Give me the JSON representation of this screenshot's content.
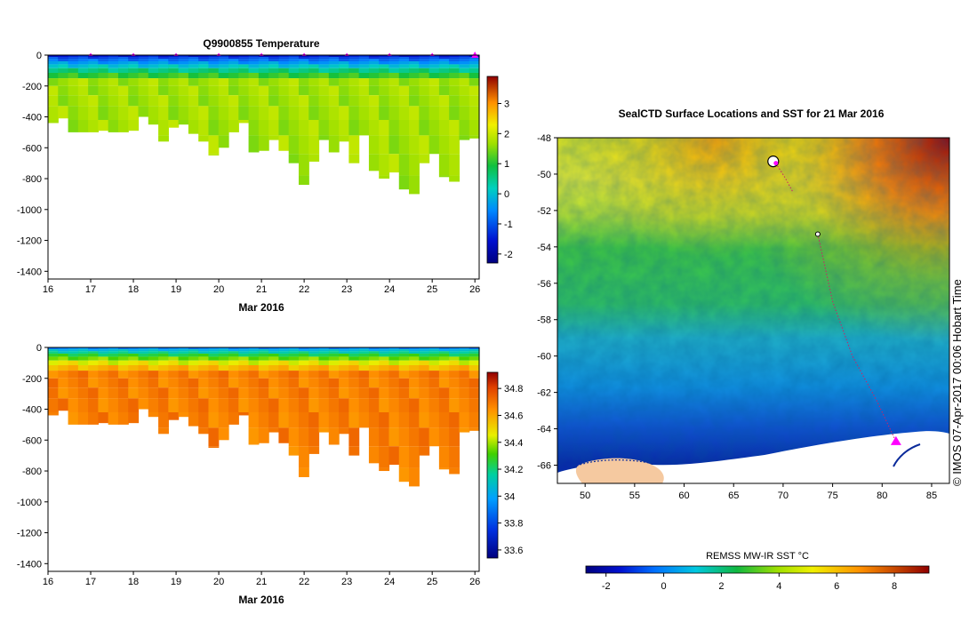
{
  "chart_data": [
    {
      "type": "heatmap",
      "title": "Q9900855  Temperature",
      "xlabel": "Mar 2016",
      "ylabel": "",
      "x_ticks": [
        "16",
        "17",
        "18",
        "19",
        "20",
        "21",
        "22",
        "23",
        "24",
        "25",
        "26"
      ],
      "y_ticks": [
        "0",
        "-200",
        "-400",
        "-600",
        "-800",
        "-1000",
        "-1200",
        "-1400"
      ],
      "xlim": [
        16,
        26.1
      ],
      "ylim": [
        -1450,
        0
      ],
      "colorbar": {
        "ticks": [
          "-2",
          "-1",
          "0",
          "1",
          "2",
          "3"
        ],
        "min": -2.3,
        "max": 3.9
      },
      "profile_markers_day": [
        17,
        18,
        19,
        20,
        21,
        22,
        23,
        24,
        25,
        26
      ],
      "surface_value": -1.8,
      "deep_value": 1.7,
      "profile_depths_m": [
        440,
        410,
        500,
        500,
        500,
        490,
        500,
        500,
        490,
        400,
        450,
        560,
        470,
        450,
        510,
        560,
        650,
        600,
        500,
        440,
        630,
        620,
        550,
        620,
        700,
        840,
        690,
        550,
        630,
        560,
        700,
        520,
        750,
        800,
        760,
        870,
        900,
        700,
        640,
        790,
        820,
        550,
        540
      ]
    },
    {
      "type": "heatmap",
      "title": "",
      "xlabel": "Mar 2016",
      "ylabel": "",
      "x_ticks": [
        "16",
        "17",
        "18",
        "19",
        "20",
        "21",
        "22",
        "23",
        "24",
        "25",
        "26"
      ],
      "y_ticks": [
        "0",
        "-200",
        "-400",
        "-600",
        "-800",
        "-1000",
        "-1200",
        "-1400"
      ],
      "xlim": [
        16,
        26.1
      ],
      "ylim": [
        -1450,
        0
      ],
      "colorbar": {
        "ticks": [
          "33.6",
          "33.8",
          "34",
          "34.2",
          "34.4",
          "34.6",
          "34.8"
        ],
        "min": 33.54,
        "max": 34.92
      },
      "surface_value": 33.8,
      "deep_value": 34.68,
      "profile_depths_m": [
        440,
        410,
        500,
        500,
        500,
        490,
        500,
        500,
        490,
        400,
        450,
        560,
        470,
        450,
        510,
        560,
        650,
        600,
        500,
        440,
        630,
        620,
        550,
        620,
        700,
        840,
        690,
        550,
        630,
        560,
        700,
        520,
        750,
        800,
        760,
        870,
        900,
        700,
        640,
        790,
        820,
        550,
        540
      ]
    },
    {
      "type": "heatmap",
      "title": "SealCTD Surface Locations and SST for 21 Mar 2016",
      "xlabel": "",
      "ylabel": "",
      "x_ticks": [
        "50",
        "55",
        "60",
        "65",
        "70",
        "75",
        "80",
        "85"
      ],
      "y_ticks": [
        "-48",
        "-50",
        "-52",
        "-54",
        "-56",
        "-58",
        "-60",
        "-62",
        "-64",
        "-66"
      ],
      "xlim": [
        47.2,
        86.8
      ],
      "ylim": [
        -67,
        -48
      ],
      "colorbar": {
        "label": "REMSS MW-IR SST °C",
        "ticks": [
          "-2",
          "0",
          "2",
          "4",
          "6",
          "8"
        ],
        "min": -2.7,
        "max": 9.2
      },
      "seal_tracks": [
        {
          "name": "track-a",
          "lon": [
            69.0,
            69.5,
            70.2,
            71.0
          ],
          "lat": [
            -49.3,
            -49.6,
            -50.2,
            -51.0
          ]
        },
        {
          "name": "track-b",
          "lon": [
            73.5,
            75.0,
            77.0,
            79.5,
            81.4
          ],
          "lat": [
            -53.3,
            -57.0,
            -60.0,
            -62.5,
            -64.7
          ]
        }
      ],
      "current_location": {
        "lon": 81.4,
        "lat": -64.7
      },
      "copyright": "© IMOS 07-Apr-2017 00:06 Hobart Time"
    }
  ]
}
